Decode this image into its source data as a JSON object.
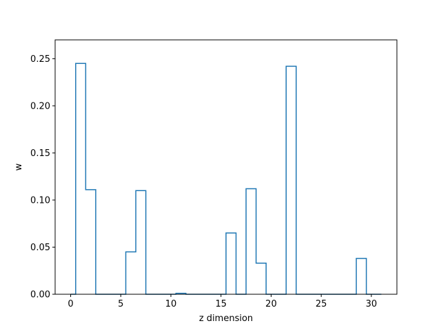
{
  "chart_data": {
    "type": "step",
    "title": "",
    "xlabel": "z dimension",
    "ylabel": "w",
    "xlim": [
      -1.55,
      32.55
    ],
    "ylim": [
      0,
      0.27
    ],
    "grid": false,
    "legend": null,
    "x_ticks": [
      0,
      5,
      10,
      15,
      20,
      25,
      30
    ],
    "x_tick_labels": [
      "0",
      "5",
      "10",
      "15",
      "20",
      "25",
      "30"
    ],
    "y_ticks": [
      0.0,
      0.05,
      0.1,
      0.15,
      0.2,
      0.25
    ],
    "y_tick_labels": [
      "0.00",
      "0.05",
      "0.10",
      "0.15",
      "0.20",
      "0.25"
    ],
    "x": [
      0,
      1,
      2,
      3,
      4,
      5,
      6,
      7,
      8,
      9,
      10,
      11,
      12,
      13,
      14,
      15,
      16,
      17,
      18,
      19,
      20,
      21,
      22,
      23,
      24,
      25,
      26,
      27,
      28,
      29,
      30,
      31
    ],
    "series": [
      {
        "color": "#1f77b4",
        "values": [
          0.0,
          0.245,
          0.111,
          0.0,
          0.0,
          0.0,
          0.045,
          0.11,
          0.0,
          0.0,
          0.0,
          0.001,
          0.0,
          0.0,
          0.0,
          0.0,
          0.065,
          0.0,
          0.112,
          0.033,
          0.0,
          0.0,
          0.242,
          0.0,
          0.0,
          0.0,
          0.0,
          0.0,
          0.0,
          0.038,
          0.0,
          0.0
        ]
      }
    ]
  }
}
